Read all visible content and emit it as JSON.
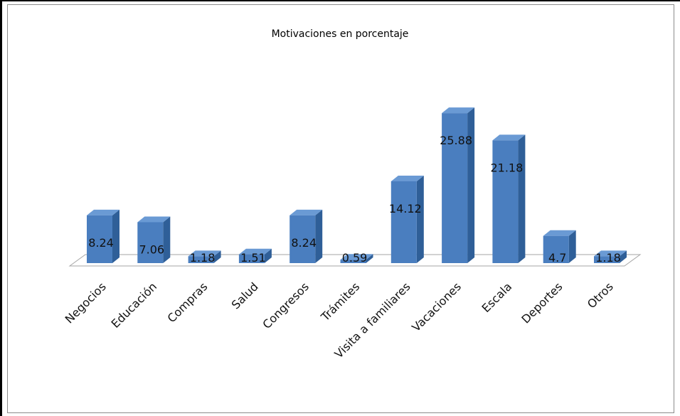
{
  "colors": {
    "bar_front": "#4a7ebf",
    "bar_side": "#2f5f98",
    "bar_top": "#6a9ad4",
    "floor_line": "#a6a6a6",
    "frame": "#000000"
  },
  "chart_data": {
    "type": "bar",
    "title": "Motivaciones en porcentaje",
    "xlabel": "",
    "ylabel": "",
    "categories": [
      "Negocios",
      "Educación",
      "Compras",
      "Salud",
      "Congresos",
      "Trámites",
      "Visita a familiares",
      "Vacaciones",
      "Escala",
      "Deportes",
      "Otros"
    ],
    "values": [
      8.24,
      7.06,
      1.18,
      1.51,
      8.24,
      0.59,
      14.12,
      25.88,
      21.18,
      4.7,
      1.18
    ],
    "value_labels": [
      "8.24",
      "7.06",
      "1.18",
      "1.51",
      "8.24",
      "0.59",
      "14.12",
      "25.88",
      "21.18",
      "4.7",
      "1.18"
    ],
    "ylim": [
      0,
      27
    ],
    "grid": false,
    "legend": "none",
    "style": "3d-column"
  }
}
